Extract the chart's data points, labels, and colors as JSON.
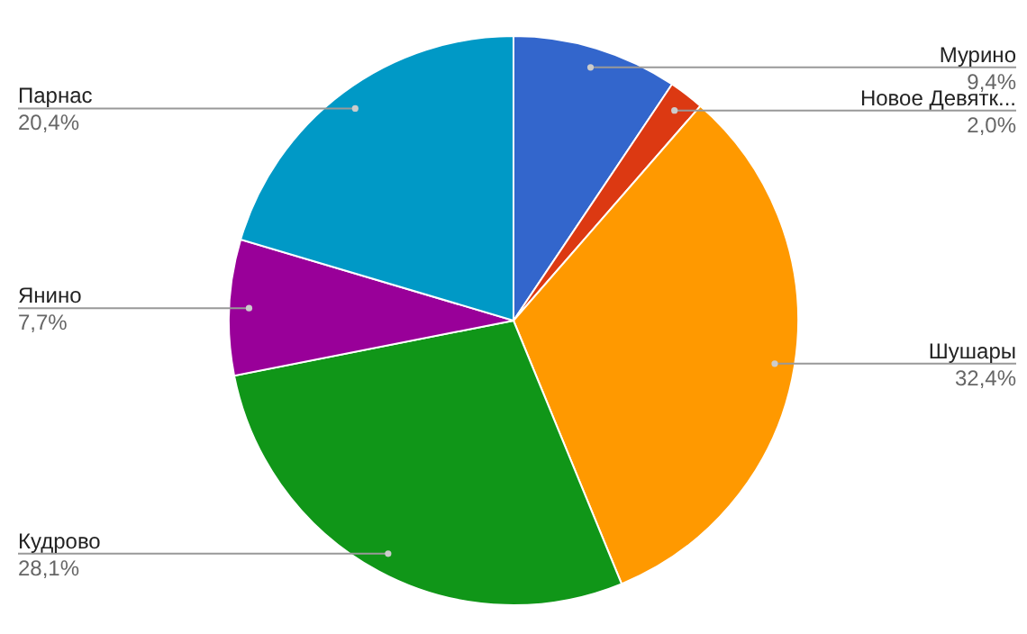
{
  "chart_data": {
    "type": "pie",
    "categories": [
      "Мурино",
      "Новое Девятк...",
      "Шушары",
      "Кудрово",
      "Янино",
      "Парнас"
    ],
    "values": [
      9.4,
      2.0,
      32.4,
      28.1,
      7.7,
      20.4
    ],
    "value_labels": [
      "9,4%",
      "2,0%",
      "32,4%",
      "28,1%",
      "7,7%",
      "20,4%"
    ],
    "colors": [
      "#3366cc",
      "#dc3912",
      "#ff9900",
      "#109618",
      "#990099",
      "#0099c6"
    ],
    "legend": false
  }
}
